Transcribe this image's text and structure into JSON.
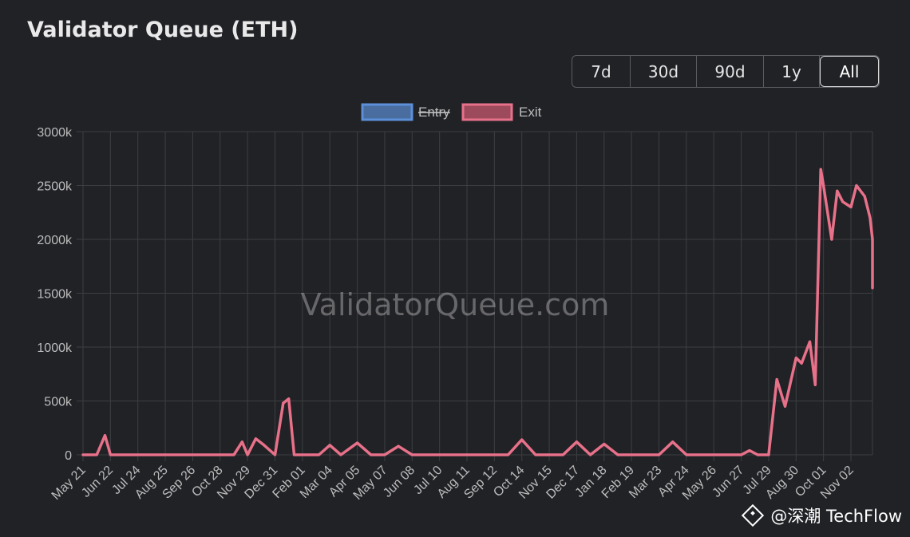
{
  "title": "Validator Queue (ETH)",
  "range_buttons": [
    {
      "label": "7d",
      "active": false
    },
    {
      "label": "30d",
      "active": false
    },
    {
      "label": "90d",
      "active": false
    },
    {
      "label": "1y",
      "active": false
    },
    {
      "label": "All",
      "active": true
    }
  ],
  "watermark": "ValidatorQueue.com",
  "corner_mark": "@深潮 TechFlow",
  "colors": {
    "background": "#212226",
    "grid": "#3d3e43",
    "entry": "#5b8fd8",
    "exit": "#e8718a"
  },
  "chart_data": {
    "type": "line",
    "title": "Validator Queue (ETH)",
    "legend": {
      "placement": "top-center",
      "entries": [
        {
          "name": "Entry",
          "hidden": true,
          "color": "#5b8fd8"
        },
        {
          "name": "Exit",
          "hidden": false,
          "color": "#e8718a"
        }
      ]
    },
    "y_axis": {
      "ylim": [
        0,
        3000
      ],
      "ticks": [
        0,
        500,
        1000,
        1500,
        2000,
        2500,
        3000
      ],
      "tick_labels": [
        "0",
        "500k",
        "1000k",
        "1500k",
        "2000k",
        "2500k",
        "3000k"
      ]
    },
    "x_axis": {
      "tick_labels": [
        "May 21",
        "Jun 22",
        "Jul 24",
        "Aug 25",
        "Sep 26",
        "Oct 28",
        "Nov 29",
        "Dec 31",
        "Feb 01",
        "Mar 04",
        "Apr 05",
        "May 07",
        "Jun 08",
        "Jul 10",
        "Aug 11",
        "Sep 12",
        "Oct 14",
        "Nov 15",
        "Dec 17",
        "Jan 18",
        "Feb 19",
        "Mar 23",
        "Apr 24",
        "May 26",
        "Jun 27",
        "Jul 29",
        "Aug 30",
        "Oct 01",
        "Nov 02"
      ]
    },
    "grid": true,
    "series": [
      {
        "name": "Exit",
        "x": [
          0,
          0.5,
          0.8,
          1.0,
          1.5,
          2,
          3,
          4,
          5,
          5.5,
          5.8,
          6,
          6.3,
          6.6,
          7,
          7.3,
          7.5,
          7.7,
          8,
          8.3,
          8.6,
          9,
          9.4,
          10,
          10.5,
          11,
          11.5,
          12,
          13,
          14,
          15,
          15.5,
          16,
          16.5,
          17,
          17.5,
          18,
          18.5,
          19,
          19.5,
          20,
          20.5,
          21,
          21.5,
          22,
          22.5,
          23,
          23.5,
          24,
          24.3,
          24.6,
          25,
          25.3,
          25.6,
          26,
          26.2,
          26.5,
          26.7,
          26.9,
          27,
          27.3,
          27.5,
          27.7,
          28,
          28.2,
          28.5,
          28.7,
          29,
          29.2
        ],
        "values": [
          0,
          0,
          180,
          0,
          0,
          0,
          0,
          0,
          0,
          0,
          120,
          0,
          150,
          90,
          0,
          480,
          520,
          0,
          0,
          0,
          0,
          90,
          0,
          110,
          0,
          0,
          80,
          0,
          0,
          0,
          0,
          0,
          140,
          0,
          0,
          0,
          120,
          0,
          100,
          0,
          0,
          0,
          0,
          120,
          0,
          0,
          0,
          0,
          0,
          40,
          0,
          0,
          700,
          450,
          900,
          850,
          1050,
          650,
          2650,
          2500,
          2000,
          2450,
          2350,
          2300,
          2500,
          2400,
          2200,
          2000,
          1550
        ]
      }
    ]
  }
}
